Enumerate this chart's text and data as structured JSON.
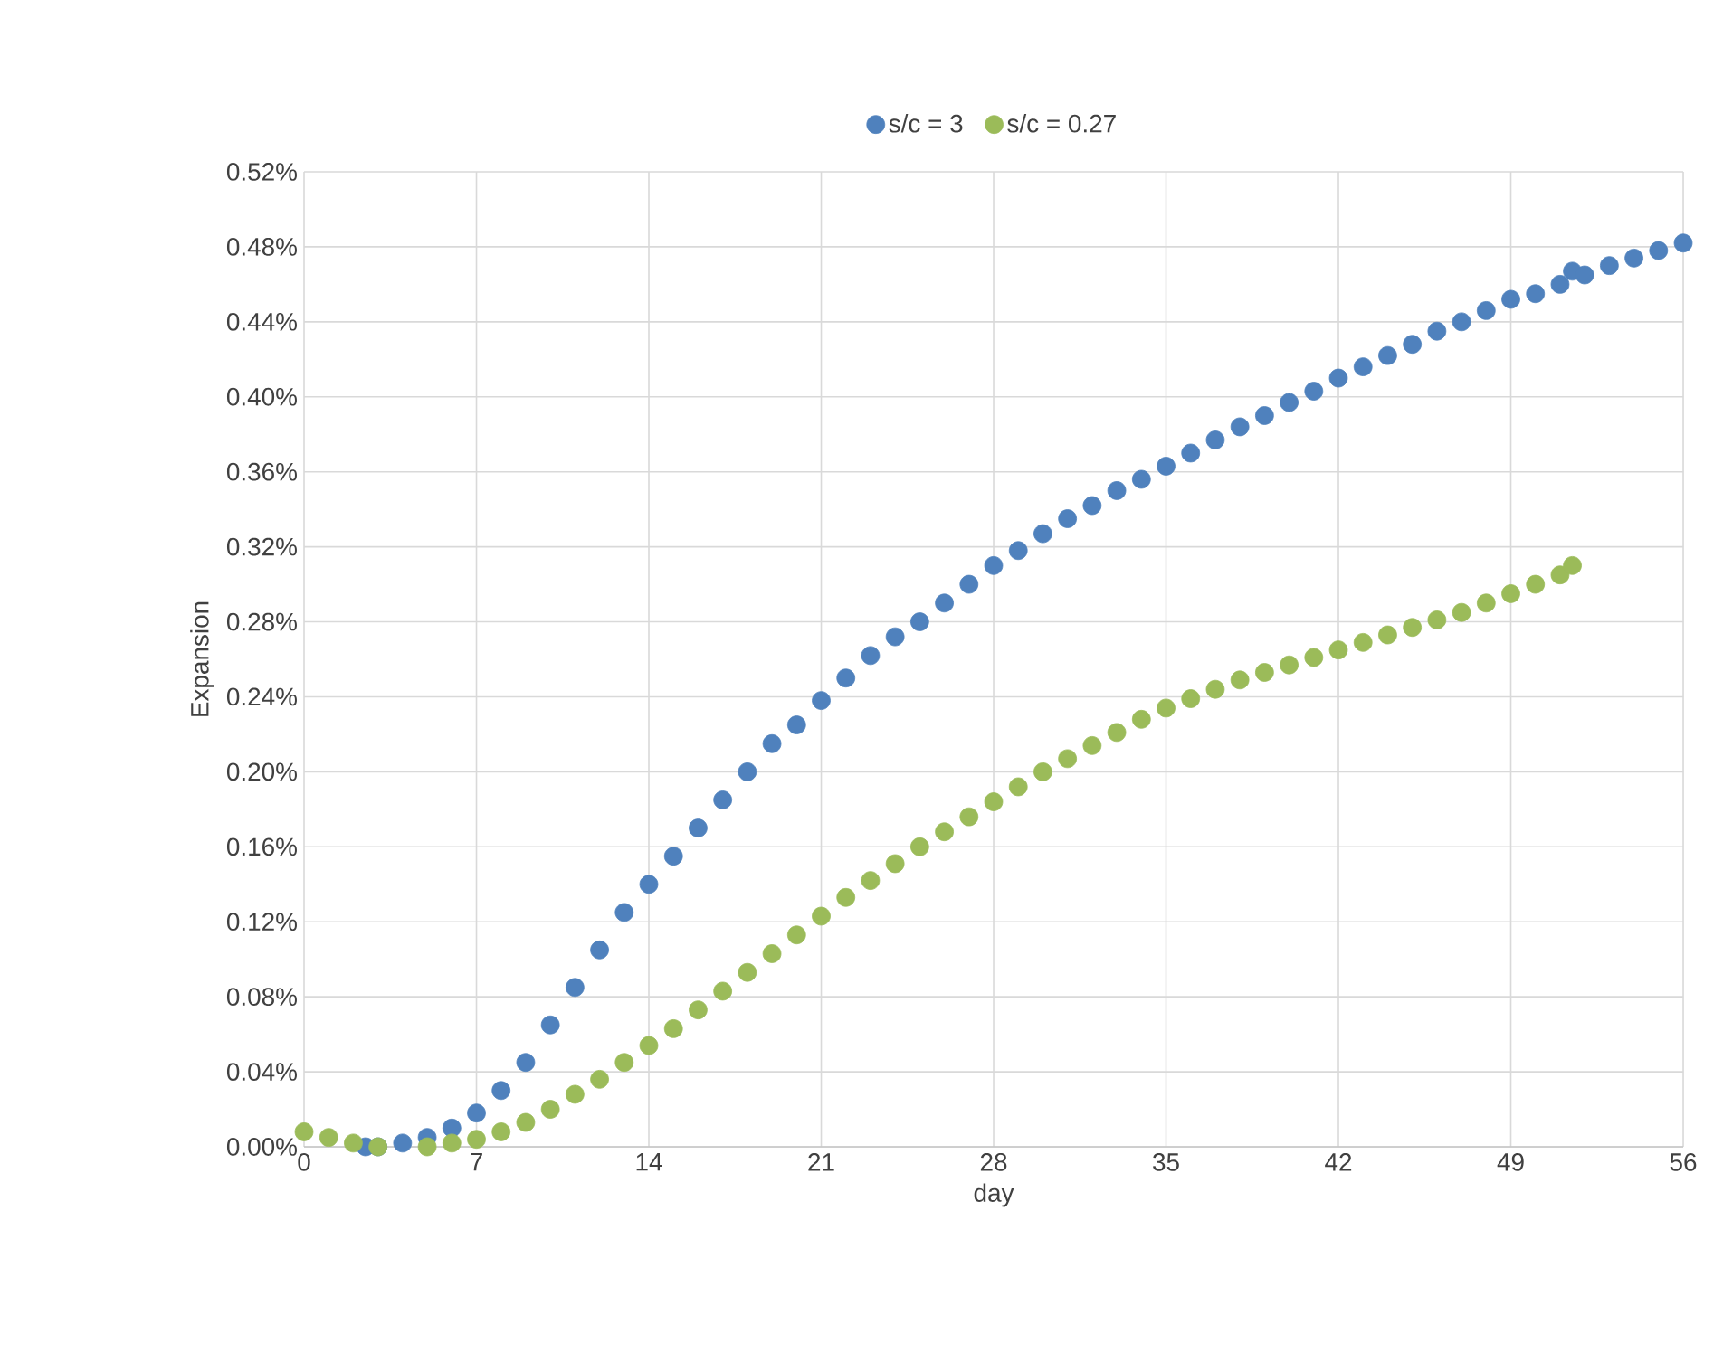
{
  "chart_data": {
    "type": "scatter",
    "xlabel": "day",
    "ylabel": "Expansion",
    "marker": "circle",
    "grid": true,
    "legend": "top",
    "xlim": [
      0,
      56
    ],
    "xticks": [
      0,
      7,
      14,
      21,
      28,
      35,
      42,
      49,
      56
    ],
    "ylim": [
      0,
      0.52
    ],
    "yticks": [
      {
        "value": 0,
        "label": "0.00%"
      },
      {
        "value": 0.04,
        "label": "0.04%"
      },
      {
        "value": 0.08,
        "label": "0.08%"
      },
      {
        "value": 0.12,
        "label": "0.12%"
      },
      {
        "value": 0.16,
        "label": "0.16%"
      },
      {
        "value": 0.2,
        "label": "0.20%"
      },
      {
        "value": 0.24,
        "label": "0.24%"
      },
      {
        "value": 0.28,
        "label": "0.28%"
      },
      {
        "value": 0.32,
        "label": "0.32%"
      },
      {
        "value": 0.36,
        "label": "0.36%"
      },
      {
        "value": 0.4,
        "label": "0.40%"
      },
      {
        "value": 0.44,
        "label": "0.44%"
      },
      {
        "value": 0.48,
        "label": "0.48%"
      },
      {
        "value": 0.52,
        "label": "0.52%"
      }
    ],
    "series": [
      {
        "name": "s/c = 3",
        "color": "#4f81bd",
        "x": [
          2.5,
          3,
          4,
          5,
          6,
          7,
          8,
          9,
          10,
          11,
          12,
          13,
          14,
          15,
          16,
          17,
          18,
          19,
          20,
          21,
          22,
          23,
          24,
          25,
          26,
          27,
          28,
          29,
          30,
          31,
          32,
          33,
          34,
          35,
          36,
          37,
          38,
          39,
          40,
          41,
          42,
          43,
          44,
          45,
          46,
          47,
          48,
          49,
          50,
          51,
          51.5,
          52,
          53,
          54,
          55,
          56
        ],
        "values": [
          0,
          0,
          0.002,
          0.005,
          0.01,
          0.018,
          0.03,
          0.045,
          0.065,
          0.085,
          0.105,
          0.125,
          0.14,
          0.155,
          0.17,
          0.185,
          0.2,
          0.215,
          0.225,
          0.238,
          0.25,
          0.262,
          0.272,
          0.28,
          0.29,
          0.3,
          0.31,
          0.318,
          0.327,
          0.335,
          0.342,
          0.35,
          0.356,
          0.363,
          0.37,
          0.377,
          0.384,
          0.39,
          0.397,
          0.403,
          0.41,
          0.416,
          0.422,
          0.428,
          0.435,
          0.44,
          0.446,
          0.452,
          0.455,
          0.46,
          0.467,
          0.465,
          0.47,
          0.474,
          0.478,
          0.482
        ]
      },
      {
        "name": "s/c = 0.27",
        "color": "#9bbb59",
        "x": [
          0,
          1,
          2,
          3,
          5,
          6,
          7,
          8,
          9,
          10,
          11,
          12,
          13,
          14,
          15,
          16,
          17,
          18,
          19,
          20,
          21,
          22,
          23,
          24,
          25,
          26,
          27,
          28,
          29,
          30,
          31,
          32,
          33,
          34,
          35,
          36,
          37,
          38,
          39,
          40,
          41,
          42,
          43,
          44,
          45,
          46,
          47,
          48,
          49,
          50,
          51,
          51.5
        ],
        "values": [
          0.008,
          0.005,
          0.002,
          0,
          0,
          0.002,
          0.004,
          0.008,
          0.013,
          0.02,
          0.028,
          0.036,
          0.045,
          0.054,
          0.063,
          0.073,
          0.083,
          0.093,
          0.103,
          0.113,
          0.123,
          0.133,
          0.142,
          0.151,
          0.16,
          0.168,
          0.176,
          0.184,
          0.192,
          0.2,
          0.207,
          0.214,
          0.221,
          0.228,
          0.234,
          0.239,
          0.244,
          0.249,
          0.253,
          0.257,
          0.261,
          0.265,
          0.269,
          0.273,
          0.277,
          0.281,
          0.285,
          0.29,
          0.295,
          0.3,
          0.305,
          0.31
        ]
      }
    ]
  }
}
